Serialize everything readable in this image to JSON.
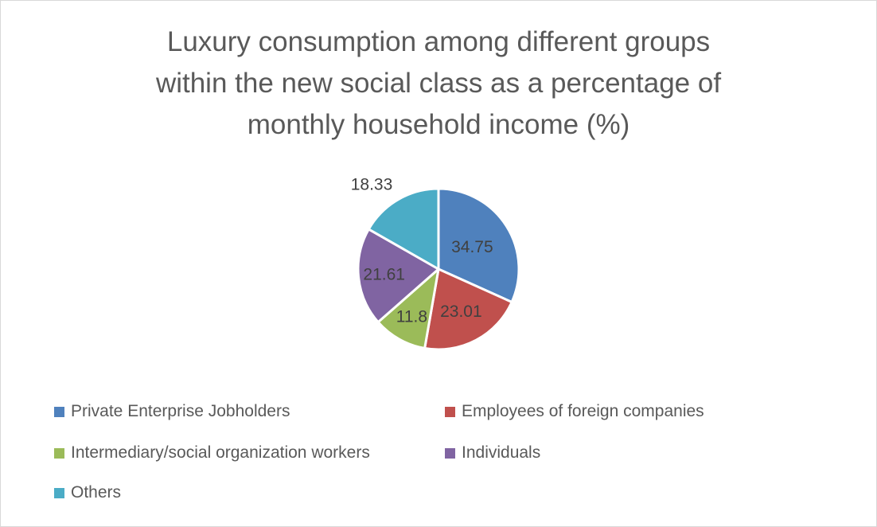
{
  "chart_data": {
    "type": "pie",
    "title": "Luxury consumption among different groups within the new social class as a percentage of monthly household income (%)",
    "title_lines": [
      "Luxury consumption among different groups",
      "within the new social class as a percentage of",
      "monthly household income (%)"
    ],
    "categories": [
      "Private Enterprise Jobholders",
      "Employees of foreign companies",
      "Intermediary/social organization workers",
      "Individuals",
      "Others"
    ],
    "values": [
      34.75,
      23.01,
      11.8,
      21.61,
      18.33
    ],
    "data_labels": [
      "34.75",
      "23.01",
      "11.8",
      "21.61",
      "18.33"
    ],
    "colors": [
      "#4f81bd",
      "#c0504d",
      "#9bbb59",
      "#8064a2",
      "#4bacc6"
    ],
    "legend_position": "bottom"
  }
}
